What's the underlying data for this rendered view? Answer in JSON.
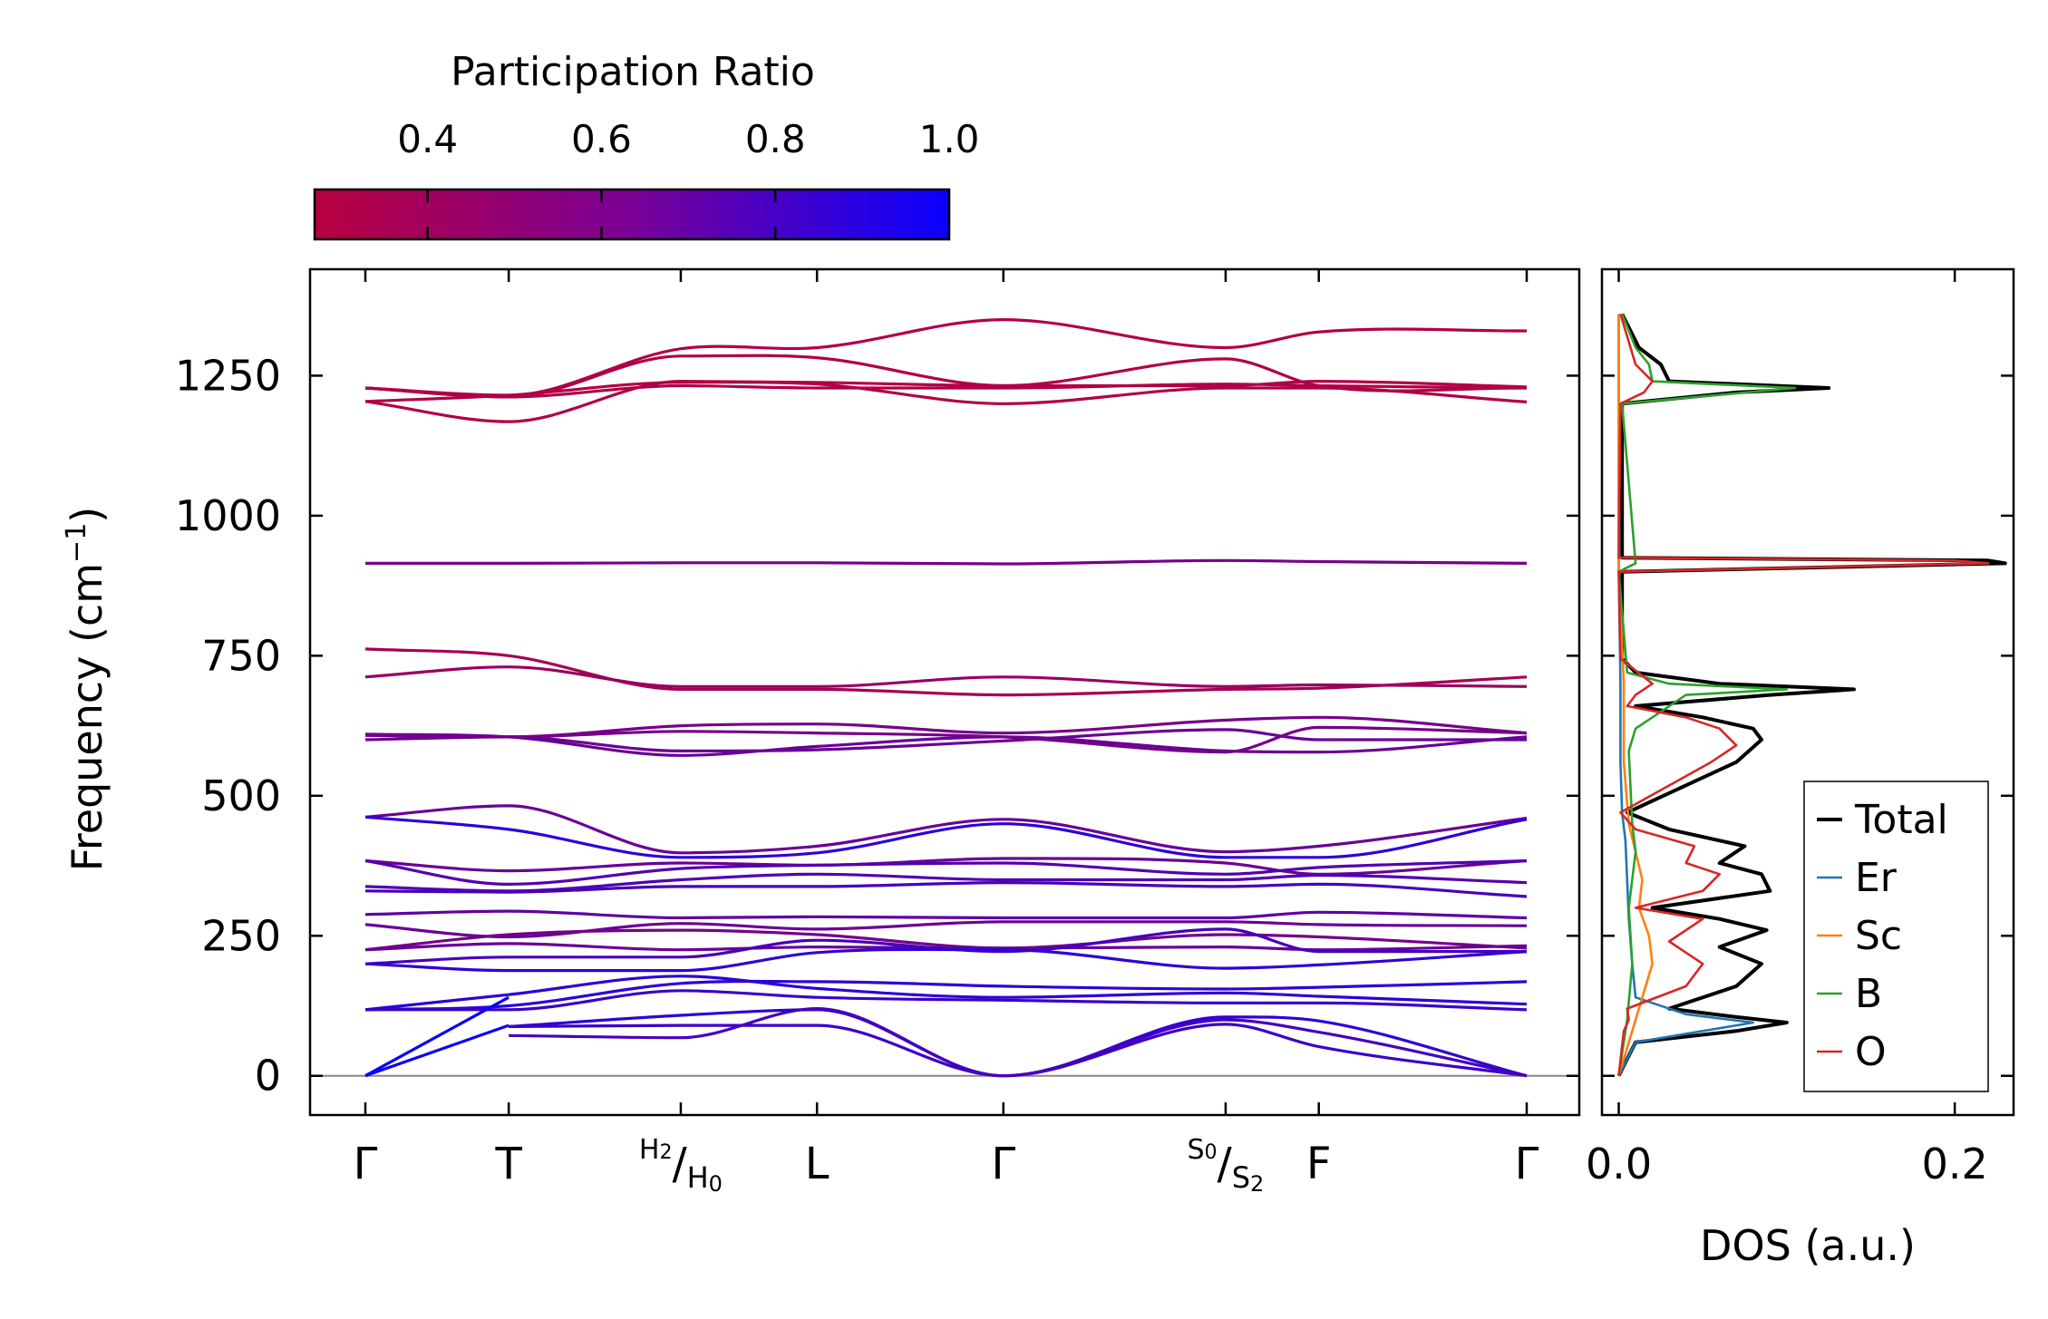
{
  "chart_data": [
    {
      "type": "line",
      "name": "phonon-band-structure",
      "ylabel": "Frequency (cm",
      "ylabel_sup": "−1",
      "ylabel_close": ")",
      "ylim": [
        -70,
        1440
      ],
      "yticks": [
        0,
        250,
        500,
        750,
        1000,
        1250
      ],
      "ytick_labels": [
        "0",
        "250",
        "500",
        "750",
        "1000",
        "1250"
      ],
      "x_path_stops": [
        0,
        1,
        2.2,
        3.15,
        4.45,
        6.0,
        6.65,
        8.1
      ],
      "x_tick_positions": [
        0,
        1,
        2.2,
        3.15,
        4.45,
        6.0,
        6.65,
        8.1
      ],
      "x_tick_labels": [
        {
          "main": "Γ"
        },
        {
          "main": "T"
        },
        {
          "sup": "H",
          "sup_sub": "2",
          "slash": "/",
          "main": "H",
          "main_sub": "0"
        },
        {
          "main": "L"
        },
        {
          "main": "Γ"
        },
        {
          "sup": "S",
          "sup_sub": "0",
          "slash": "/",
          "main": "S",
          "main_sub": "2"
        },
        {
          "main": "F"
        },
        {
          "main": "Γ"
        }
      ],
      "zero_line": 0,
      "color_variable": "participation_ratio",
      "bands_note": "each band: y values at path stops (same order as x_path_stops); pr = participation ratio",
      "bands": [
        {
          "y": [
            1228,
            1212,
            1232,
            1228,
            1228,
            1235,
            1232,
            1228
          ],
          "pr": 0.3
        },
        {
          "y": [
            1204,
            1215,
            1238,
            1235,
            1200,
            1228,
            1228,
            1203
          ],
          "pr": 0.3
        },
        {
          "y": [
            1204,
            1168,
            1240,
            1238,
            1232,
            1280,
            1232,
            1228
          ],
          "pr": 0.3
        },
        {
          "y": [
            1228,
            1212,
            1285,
            1282,
            1232,
            1232,
            1240,
            1230
          ],
          "pr": 0.3
        },
        {
          "y": [
            1228,
            1215,
            1298,
            1300,
            1350,
            1300,
            1328,
            1330
          ],
          "pr": 0.3
        },
        {
          "y": [
            915,
            915,
            916,
            916,
            914,
            920,
            918,
            915
          ],
          "pr": 0.55
        },
        {
          "y": [
            762,
            750,
            690,
            690,
            680,
            690,
            692,
            712
          ],
          "pr": 0.35
        },
        {
          "y": [
            712,
            730,
            695,
            695,
            712,
            695,
            698,
            695
          ],
          "pr": 0.4
        },
        {
          "y": [
            608,
            605,
            625,
            628,
            612,
            635,
            640,
            612
          ],
          "pr": 0.55
        },
        {
          "y": [
            600,
            605,
            580,
            582,
            598,
            618,
            600,
            600
          ],
          "pr": 0.6
        },
        {
          "y": [
            610,
            605,
            572,
            588,
            605,
            580,
            578,
            605
          ],
          "pr": 0.6
        },
        {
          "y": [
            608,
            605,
            615,
            612,
            605,
            578,
            622,
            612
          ],
          "pr": 0.55
        },
        {
          "y": [
            462,
            482,
            398,
            410,
            458,
            400,
            410,
            460
          ],
          "pr": 0.6
        },
        {
          "y": [
            462,
            440,
            390,
            398,
            450,
            390,
            390,
            458
          ],
          "pr": 0.85
        },
        {
          "y": [
            384,
            366,
            380,
            376,
            388,
            380,
            360,
            384
          ],
          "pr": 0.6
        },
        {
          "y": [
            384,
            342,
            370,
            376,
            380,
            360,
            372,
            384
          ],
          "pr": 0.7
        },
        {
          "y": [
            338,
            330,
            350,
            360,
            350,
            350,
            358,
            345
          ],
          "pr": 0.7
        },
        {
          "y": [
            330,
            328,
            338,
            338,
            345,
            338,
            342,
            320
          ],
          "pr": 0.75
        },
        {
          "y": [
            288,
            294,
            282,
            284,
            282,
            282,
            292,
            282
          ],
          "pr": 0.65
        },
        {
          "y": [
            270,
            248,
            272,
            262,
            275,
            275,
            270,
            268
          ],
          "pr": 0.6
        },
        {
          "y": [
            225,
            252,
            260,
            252,
            228,
            252,
            248,
            228
          ],
          "pr": 0.55
        },
        {
          "y": [
            225,
            236,
            225,
            230,
            228,
            230,
            225,
            232
          ],
          "pr": 0.6
        },
        {
          "y": [
            200,
            212,
            212,
            242,
            222,
            262,
            222,
            222
          ],
          "pr": 0.75
        },
        {
          "y": [
            200,
            188,
            188,
            220,
            225,
            192,
            198,
            222
          ],
          "pr": 0.85
        },
        {
          "y": [
            118,
            125,
            165,
            168,
            160,
            155,
            158,
            168
          ],
          "pr": 0.85
        },
        {
          "y": [
            118,
            145,
            178,
            156,
            140,
            148,
            142,
            128
          ],
          "pr": 0.85
        },
        {
          "y": [
            118,
            118,
            152,
            140,
            135,
            130,
            130,
            118
          ],
          "pr": 0.8
        },
        {
          "y": [
            0,
            140,
            null,
            null,
            null,
            null,
            null,
            null
          ],
          "pr": 1.0
        },
        {
          "y": [
            0,
            90,
            null,
            null,
            null,
            null,
            null,
            null
          ],
          "pr": 1.0
        },
        {
          "y": [
            null,
            88,
            108,
            118,
            0,
            105,
            98,
            0
          ],
          "pr": 0.85
        },
        {
          "y": [
            null,
            88,
            90,
            90,
            0,
            92,
            52,
            0
          ],
          "pr": 0.8
        },
        {
          "y": [
            null,
            72,
            68,
            120,
            0,
            100,
            78,
            0
          ],
          "pr": 0.75
        }
      ]
    },
    {
      "type": "line",
      "name": "phonon-dos",
      "xlabel": "DOS (a.u.)",
      "xlim": [
        -0.01,
        0.235
      ],
      "ylim": [
        -70,
        1440
      ],
      "xticks": [
        0.0,
        0.2
      ],
      "xtick_labels": [
        "0.0",
        "0.2"
      ],
      "legend_position": "lower-right",
      "legend_entries": [
        "Total",
        "Er",
        "Sc",
        "B",
        "O"
      ],
      "series": [
        {
          "name": "Total",
          "color": "#000000",
          "y": [
            0,
            60,
            80,
            95,
            105,
            120,
            160,
            200,
            230,
            260,
            280,
            300,
            330,
            360,
            380,
            410,
            440,
            470,
            560,
            600,
            620,
            640,
            660,
            680,
            690,
            700,
            720,
            745,
            900,
            915,
            920,
            925,
            1200,
            1220,
            1228,
            1240,
            1270,
            1300,
            1360
          ],
          "x": [
            0,
            0.01,
            0.07,
            0.1,
            0.07,
            0.03,
            0.07,
            0.085,
            0.06,
            0.088,
            0.06,
            0.02,
            0.09,
            0.085,
            0.06,
            0.075,
            0.03,
            0.005,
            0.07,
            0.085,
            0.08,
            0.05,
            0.01,
            0.09,
            0.14,
            0.06,
            0.01,
            0.002,
            0.002,
            0.23,
            0.22,
            0.002,
            0.002,
            0.07,
            0.125,
            0.03,
            0.025,
            0.012,
            0.002
          ]
        },
        {
          "name": "Er",
          "color": "#1f77b4",
          "y": [
            0,
            60,
            80,
            95,
            110,
            140,
            200,
            280,
            350,
            420,
            470,
            560,
            700,
            900,
            1200,
            1360
          ],
          "x": [
            0,
            0.01,
            0.05,
            0.08,
            0.04,
            0.01,
            0.008,
            0.006,
            0.005,
            0.004,
            0.002,
            0.001,
            0.001,
            0.0,
            0.0,
            0.0
          ]
        },
        {
          "name": "Sc",
          "color": "#ff7f0e",
          "y": [
            0,
            100,
            150,
            200,
            250,
            300,
            350,
            400,
            450,
            560,
            700,
            900,
            1200,
            1360
          ],
          "x": [
            0,
            0.01,
            0.015,
            0.02,
            0.018,
            0.012,
            0.014,
            0.01,
            0.006,
            0.003,
            0.003,
            0.0,
            0.0,
            0.0
          ]
        },
        {
          "name": "B",
          "color": "#2ca02c",
          "y": [
            0,
            100,
            200,
            300,
            400,
            450,
            580,
            620,
            680,
            690,
            700,
            720,
            900,
            915,
            1200,
            1228,
            1240,
            1270,
            1300,
            1360
          ],
          "x": [
            0,
            0.005,
            0.008,
            0.006,
            0.01,
            0.008,
            0.006,
            0.01,
            0.04,
            0.1,
            0.03,
            0.005,
            0.0,
            0.01,
            0.002,
            0.105,
            0.02,
            0.018,
            0.01,
            0.002
          ]
        },
        {
          "name": "O",
          "color": "#d62728",
          "y": [
            0,
            80,
            100,
            120,
            160,
            200,
            240,
            280,
            300,
            330,
            360,
            380,
            410,
            440,
            470,
            560,
            590,
            620,
            640,
            660,
            680,
            700,
            745,
            900,
            915,
            920,
            925,
            1200,
            1220,
            1240,
            1270,
            1360
          ],
          "x": [
            0,
            0.003,
            0.006,
            0.005,
            0.04,
            0.05,
            0.03,
            0.05,
            0.01,
            0.05,
            0.06,
            0.04,
            0.045,
            0.01,
            0.001,
            0.055,
            0.07,
            0.06,
            0.04,
            0.005,
            0.01,
            0.02,
            0.001,
            0.0,
            0.22,
            0.2,
            0.0,
            0.001,
            0.015,
            0.02,
            0.01,
            0.001
          ]
        }
      ]
    }
  ],
  "colorbar": {
    "title": "Participation Ratio",
    "range": [
      0.27,
      1.0
    ],
    "ticks": [
      0.4,
      0.6,
      0.8,
      1.0
    ],
    "tick_labels": [
      "0.4",
      "0.6",
      "0.8",
      "1.0"
    ],
    "color_low": "#b8003f",
    "color_high": "#0a00ff"
  }
}
